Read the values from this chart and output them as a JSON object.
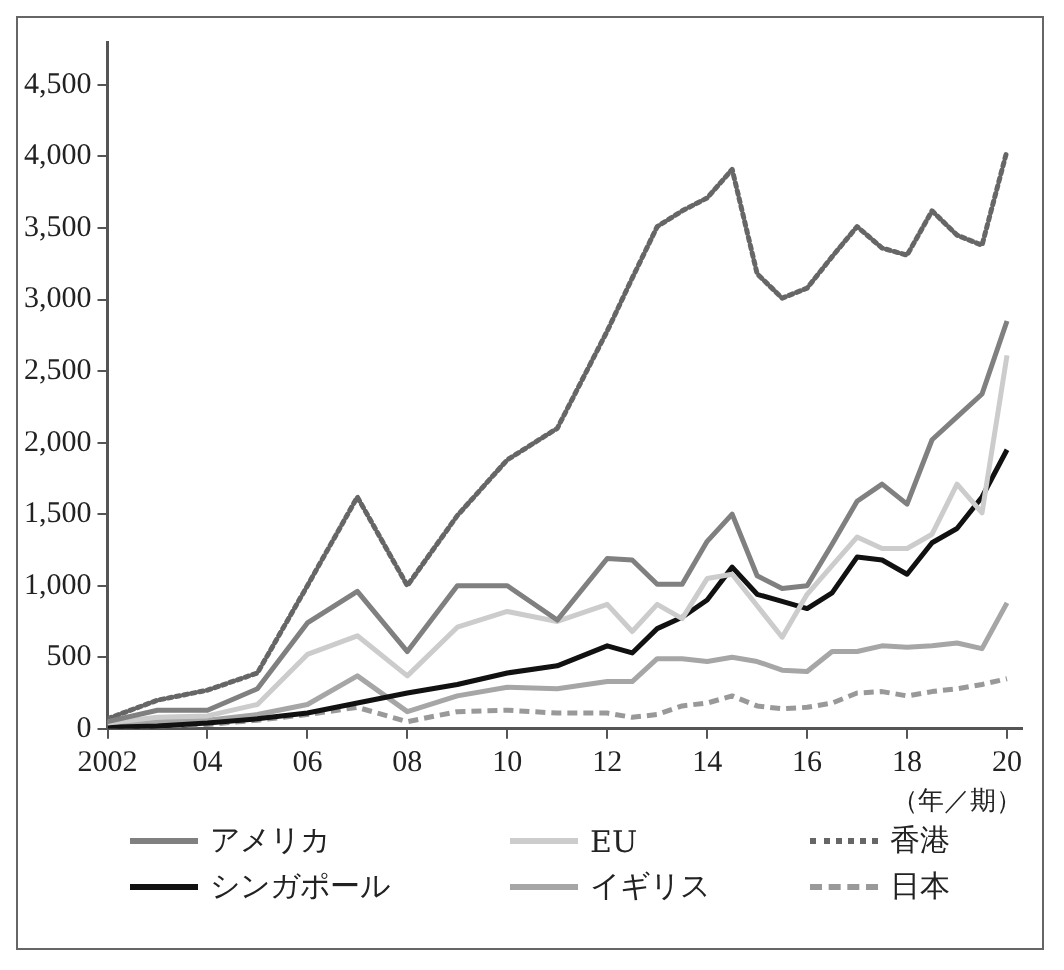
{
  "chart_data": {
    "type": "line",
    "xlabel": "（年／期）",
    "x": [
      2002,
      2003,
      2004,
      2005,
      2006,
      2007,
      2008,
      2009,
      2010,
      2011,
      2012,
      2012.5,
      2013,
      2013.5,
      2014,
      2014.5,
      2015,
      2015.5,
      2016,
      2016.5,
      2017,
      2017.5,
      2018,
      2018.5,
      2019,
      2019.5,
      2020
    ],
    "series": [
      {
        "name": "アメリカ",
        "color": "#808080",
        "line_style": "solid",
        "values": [
          50,
          130,
          130,
          280,
          740,
          960,
          540,
          1000,
          1000,
          760,
          1190,
          1180,
          1010,
          1010,
          1310,
          1500,
          1070,
          980,
          1000,
          1290,
          1590,
          1710,
          1570,
          2020,
          2180,
          2340,
          2850
        ]
      },
      {
        "name": "EU",
        "color": "#cccccc",
        "line_style": "solid",
        "values": [
          40,
          80,
          90,
          170,
          520,
          650,
          370,
          710,
          820,
          750,
          870,
          680,
          870,
          770,
          1050,
          1080,
          860,
          640,
          940,
          1140,
          1340,
          1260,
          1260,
          1360,
          1710,
          1510,
          2610
        ]
      },
      {
        "name": "香港",
        "color": "#666666",
        "line_style": "dotted",
        "values": [
          70,
          200,
          270,
          390,
          1000,
          1620,
          1000,
          1490,
          1880,
          2100,
          2780,
          3150,
          3510,
          3620,
          3710,
          3910,
          3180,
          3010,
          3080,
          3300,
          3510,
          3360,
          3310,
          3620,
          3450,
          3380,
          4040
        ]
      },
      {
        "name": "シンガポール",
        "color": "#111111",
        "line_style": "solid",
        "values": [
          10,
          20,
          40,
          70,
          110,
          180,
          250,
          310,
          390,
          440,
          580,
          530,
          700,
          780,
          900,
          1130,
          940,
          890,
          840,
          950,
          1200,
          1180,
          1080,
          1300,
          1400,
          1620,
          1950
        ]
      },
      {
        "name": "イギリス",
        "color": "#a6a6a6",
        "line_style": "solid",
        "values": [
          20,
          50,
          60,
          100,
          170,
          370,
          120,
          230,
          290,
          280,
          330,
          330,
          490,
          490,
          470,
          500,
          470,
          410,
          400,
          540,
          540,
          580,
          570,
          580,
          600,
          560,
          880
        ]
      },
      {
        "name": "日本",
        "color": "#999999",
        "line_style": "dashed",
        "values": [
          10,
          20,
          30,
          60,
          100,
          150,
          50,
          120,
          130,
          110,
          110,
          80,
          100,
          160,
          180,
          230,
          160,
          140,
          150,
          180,
          250,
          260,
          230,
          260,
          280,
          310,
          350
        ]
      }
    ],
    "xlim": [
      2002,
      2020.3
    ],
    "xticks": [
      {
        "value": 2002,
        "label": "2002"
      },
      {
        "value": 2004,
        "label": "04"
      },
      {
        "value": 2006,
        "label": "06"
      },
      {
        "value": 2008,
        "label": "08"
      },
      {
        "value": 2010,
        "label": "10"
      },
      {
        "value": 2012,
        "label": "12"
      },
      {
        "value": 2014,
        "label": "14"
      },
      {
        "value": 2016,
        "label": "16"
      },
      {
        "value": 2018,
        "label": "18"
      },
      {
        "value": 2020,
        "label": "20"
      }
    ],
    "ylim": [
      0,
      4800
    ],
    "yticks": [
      0,
      {
        "value": 500,
        "label": "500"
      },
      {
        "value": 1000,
        "label": "1,000"
      },
      {
        "value": 1500,
        "label": "1,500"
      },
      {
        "value": 2000,
        "label": "2,000"
      },
      {
        "value": 2500,
        "label": "2,500"
      },
      {
        "value": 3000,
        "label": "3,000"
      },
      {
        "value": 3500,
        "label": "3,500"
      },
      {
        "value": 4000,
        "label": "4,000"
      },
      {
        "value": 4500,
        "label": "4,500"
      }
    ],
    "grid": false,
    "legend": "bottom",
    "marker": "none"
  }
}
